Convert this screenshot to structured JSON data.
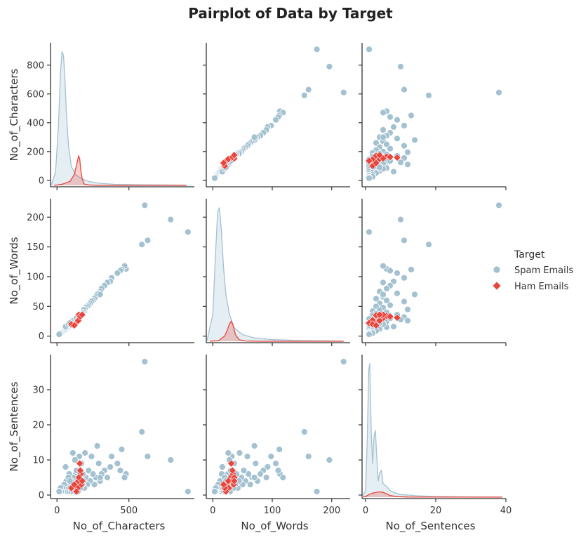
{
  "chart_data": {
    "type": "scatter",
    "title": "Pairplot of Data by Target",
    "variables": [
      "No_of_Characters",
      "No_of_Words",
      "No_of_Sentences"
    ],
    "axis_ranges": {
      "No_of_Characters": [
        -45,
        955
      ],
      "No_of_Words": [
        -11,
        231
      ],
      "No_of_Sentences": [
        -1,
        40
      ]
    },
    "ticks": {
      "No_of_Characters": [
        0,
        200,
        400,
        600,
        800
      ],
      "No_of_Characters_x": [
        0,
        500
      ],
      "No_of_Words": [
        0,
        50,
        100,
        150,
        200
      ],
      "No_of_Words_x": [
        0,
        100,
        200
      ],
      "No_of_Sentences": [
        0,
        10,
        20,
        30
      ],
      "No_of_Sentences_x": [
        0,
        20,
        40
      ]
    },
    "grid": false,
    "legend": {
      "title": "Target",
      "placement": "right",
      "entries": [
        {
          "label": "Spam Emails",
          "color": "#a3c1d1",
          "marker": "circle"
        },
        {
          "label": "Ham Emails",
          "color": "#e8453c",
          "marker": "diamond"
        }
      ]
    },
    "series": [
      {
        "name": "Spam Emails",
        "color": "#a3c1d1",
        "points": [
          [
            910,
            175,
            1
          ],
          [
            790,
            196,
            10
          ],
          [
            630,
            161,
            11
          ],
          [
            610,
            220,
            38
          ],
          [
            590,
            154,
            18
          ],
          [
            480,
            113,
            6
          ],
          [
            470,
            118,
            5
          ],
          [
            450,
            112,
            13
          ],
          [
            440,
            110,
            7
          ],
          [
            420,
            106,
            9
          ],
          [
            380,
            98,
            11
          ],
          [
            370,
            92,
            8
          ],
          [
            350,
            90,
            5
          ],
          [
            330,
            85,
            7
          ],
          [
            310,
            80,
            6
          ],
          [
            300,
            75,
            4
          ],
          [
            290,
            72,
            9
          ],
          [
            280,
            70,
            14
          ],
          [
            270,
            66,
            5
          ],
          [
            260,
            63,
            3
          ],
          [
            250,
            60,
            6
          ],
          [
            240,
            58,
            11
          ],
          [
            230,
            55,
            4
          ],
          [
            220,
            52,
            7
          ],
          [
            210,
            50,
            3
          ],
          [
            200,
            48,
            5
          ],
          [
            195,
            45,
            12
          ],
          [
            190,
            42,
            2
          ],
          [
            185,
            44,
            4
          ],
          [
            180,
            40,
            6
          ],
          [
            175,
            38,
            3
          ],
          [
            170,
            36,
            9
          ],
          [
            165,
            35,
            2
          ],
          [
            160,
            33,
            5
          ],
          [
            155,
            32,
            11
          ],
          [
            150,
            30,
            3
          ],
          [
            145,
            29,
            1
          ],
          [
            140,
            27,
            4
          ],
          [
            135,
            26,
            2
          ],
          [
            130,
            25,
            6
          ],
          [
            125,
            24,
            3
          ],
          [
            120,
            22,
            1
          ],
          [
            115,
            21,
            5
          ],
          [
            110,
            20,
            2
          ],
          [
            105,
            19,
            3
          ],
          [
            100,
            18,
            4
          ],
          [
            95,
            17,
            1
          ],
          [
            90,
            16,
            2
          ],
          [
            85,
            15,
            6
          ],
          [
            80,
            14,
            3
          ],
          [
            75,
            13,
            1
          ],
          [
            70,
            12,
            2
          ],
          [
            65,
            12,
            4
          ],
          [
            60,
            11,
            1
          ],
          [
            55,
            10,
            2
          ],
          [
            50,
            9,
            3
          ],
          [
            45,
            8,
            1
          ],
          [
            40,
            7,
            2
          ],
          [
            35,
            6,
            1
          ],
          [
            30,
            5,
            1
          ],
          [
            25,
            5,
            2
          ],
          [
            20,
            4,
            1
          ],
          [
            15,
            3,
            1
          ],
          [
            60,
            16,
            8
          ],
          [
            110,
            26,
            12
          ],
          [
            125,
            28,
            10
          ],
          [
            135,
            30,
            7
          ],
          [
            80,
            20,
            5
          ],
          [
            90,
            22,
            4
          ],
          [
            300,
            70,
            5
          ]
        ]
      },
      {
        "name": "Ham Emails",
        "color": "#e8453c",
        "points": [
          [
            140,
            25,
            3
          ],
          [
            150,
            28,
            4
          ],
          [
            155,
            30,
            5
          ],
          [
            160,
            32,
            4
          ],
          [
            145,
            27,
            2
          ],
          [
            165,
            34,
            6
          ],
          [
            170,
            35,
            3
          ],
          [
            158,
            31,
            9
          ],
          [
            135,
            22,
            1
          ],
          [
            148,
            26,
            4
          ],
          [
            152,
            36,
            5
          ],
          [
            162,
            33,
            7
          ],
          [
            100,
            20,
            2
          ],
          [
            120,
            18,
            3
          ],
          [
            175,
            36,
            4
          ]
        ]
      }
    ],
    "diagonal_kde": {
      "No_of_Characters": {
        "Spam Emails": {
          "x": [
            -40,
            -10,
            10,
            25,
            35,
            45,
            55,
            65,
            80,
            100,
            130,
            170,
            220,
            300,
            400,
            600,
            900
          ],
          "y": [
            0,
            0.1,
            0.45,
            0.85,
            1.0,
            0.97,
            0.8,
            0.55,
            0.3,
            0.14,
            0.08,
            0.05,
            0.03,
            0.015,
            0.008,
            0.004,
            0.002
          ]
        },
        "Ham Emails": {
          "x": [
            -20,
            40,
            90,
            120,
            140,
            150,
            158,
            165,
            175,
            190,
            220,
            300,
            500,
            900
          ],
          "y": [
            0,
            0.01,
            0.03,
            0.08,
            0.17,
            0.22,
            0.2,
            0.12,
            0.05,
            0.01,
            0.003,
            0,
            0,
            0
          ]
        }
      },
      "No_of_Words": {
        "Spam Emails": {
          "x": [
            -10,
            0,
            5,
            8,
            11,
            14,
            18,
            22,
            28,
            36,
            50,
            70,
            100,
            150,
            220
          ],
          "y": [
            0,
            0.2,
            0.7,
            0.96,
            1.0,
            0.85,
            0.55,
            0.35,
            0.2,
            0.1,
            0.05,
            0.025,
            0.012,
            0.005,
            0.002
          ]
        },
        "Ham Emails": {
          "x": [
            -5,
            10,
            20,
            25,
            28,
            31,
            34,
            38,
            44,
            55,
            80,
            220
          ],
          "y": [
            0,
            0.005,
            0.04,
            0.09,
            0.13,
            0.15,
            0.12,
            0.05,
            0.012,
            0.002,
            0,
            0
          ]
        }
      },
      "No_of_Sentences": {
        "Spam Emails": {
          "x": [
            -1,
            0,
            0.5,
            0.9,
            1.2,
            1.6,
            2.0,
            2.4,
            2.8,
            3.2,
            3.6,
            4.0,
            4.5,
            5,
            6,
            7,
            8,
            10,
            15,
            20,
            30,
            39
          ],
          "y": [
            0,
            0.05,
            0.45,
            0.95,
            1.0,
            0.5,
            0.25,
            0.45,
            0.5,
            0.3,
            0.12,
            0.18,
            0.2,
            0.1,
            0.08,
            0.05,
            0.035,
            0.02,
            0.01,
            0.005,
            0.002,
            0.001
          ]
        },
        "Ham Emails": {
          "x": [
            -1,
            0,
            1,
            2,
            3,
            4,
            5,
            6,
            7,
            9,
            12,
            39
          ],
          "y": [
            0,
            0.005,
            0.02,
            0.03,
            0.035,
            0.04,
            0.035,
            0.025,
            0.012,
            0.004,
            0.001,
            0
          ]
        }
      }
    }
  }
}
